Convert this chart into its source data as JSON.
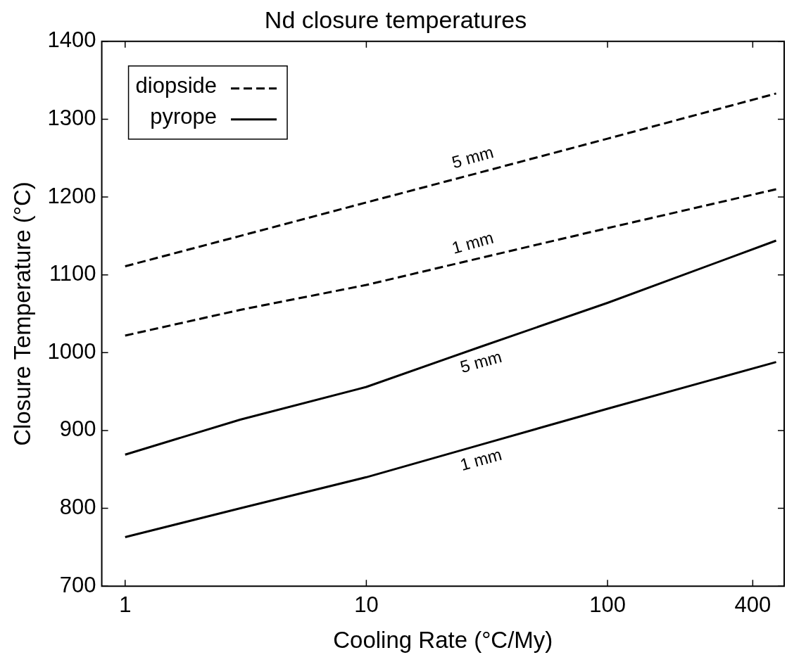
{
  "chart_data": {
    "type": "line",
    "title": "Nd closure temperatures",
    "xlabel": "Cooling Rate (°C/My)",
    "ylabel": "Closure Temperature (°C)",
    "log": "x",
    "xlim": [
      0.8,
      540
    ],
    "xticks": [
      1,
      10,
      100,
      400
    ],
    "ylim": [
      700,
      1400
    ],
    "yticks": [
      700,
      800,
      900,
      1000,
      1100,
      1200,
      1300,
      1400
    ],
    "grid": false,
    "legend": "top left",
    "marker": "none",
    "series": [
      {
        "name": "diopside",
        "color": "#000000",
        "line_style": "dashed",
        "x": [
          1,
          3,
          10,
          30,
          100,
          500
        ],
        "values": [
          1111,
          1150,
          1193,
          1232,
          1275,
          1333
        ]
      },
      {
        "color": "#000000",
        "line_style": "dashed",
        "x": [
          1,
          3,
          10,
          30,
          100,
          500
        ],
        "values": [
          1022,
          1055,
          1087,
          1122,
          1160,
          1210
        ]
      },
      {
        "name": "pyrope",
        "color": "#000000",
        "line_style": "solid",
        "x": [
          1,
          3,
          10,
          30,
          100,
          500
        ],
        "values": [
          869,
          914,
          956,
          1008,
          1064,
          1144
        ]
      },
      {
        "color": "#000000",
        "line_style": "solid",
        "x": [
          1,
          3,
          10,
          30,
          100,
          500
        ],
        "values": [
          763,
          800,
          840,
          882,
          928,
          988
        ]
      }
    ],
    "annotations": [
      "5 mm",
      "1 mm",
      "5 mm",
      "1 mm"
    ]
  }
}
